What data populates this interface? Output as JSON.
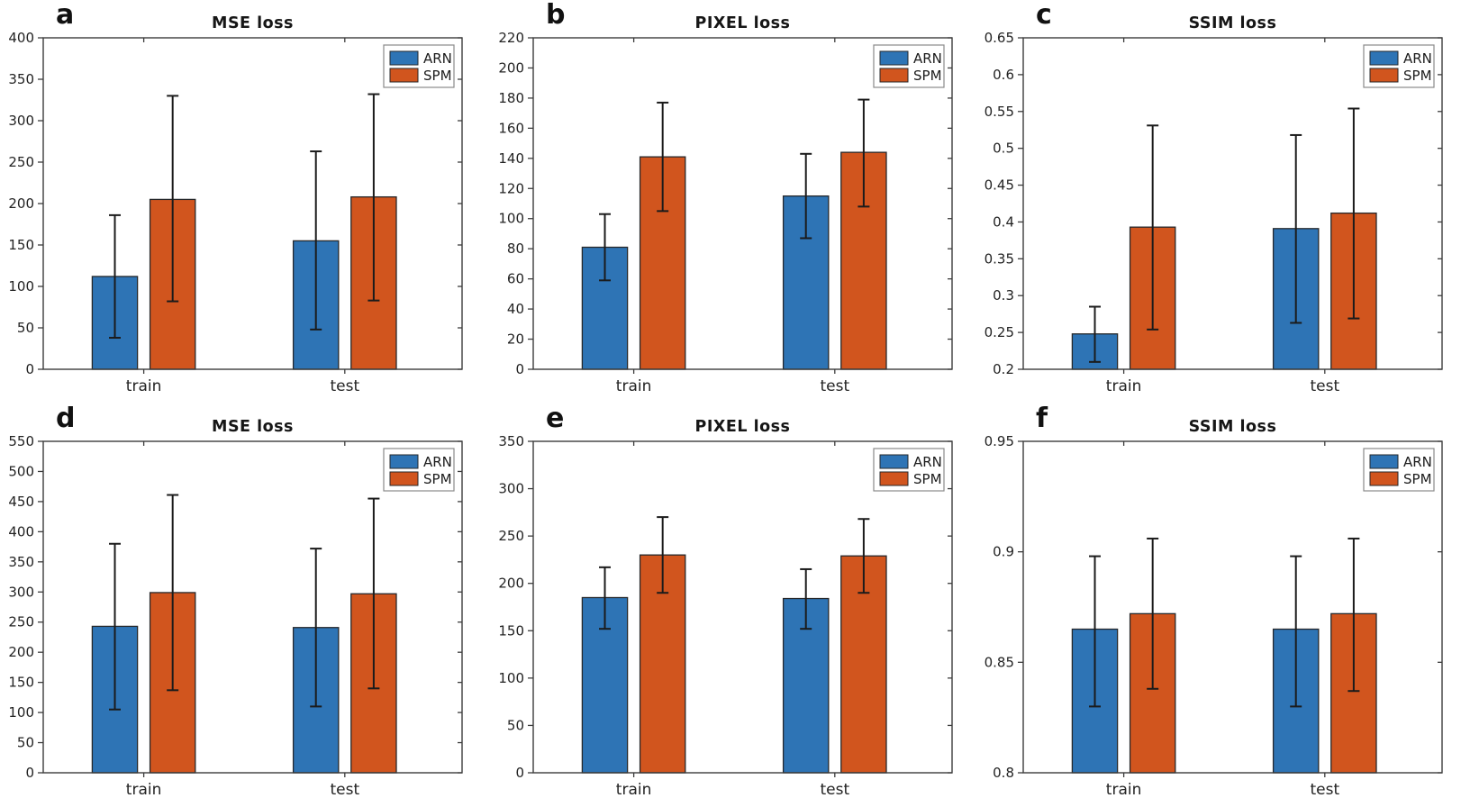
{
  "figure": {
    "background": "#ffffff",
    "series_colors": {
      "ARN": "#2E74B5",
      "SPM": "#D1551E"
    },
    "bar_edge_color": "#26282B",
    "errorbar_color": "#1B1B1B",
    "axis_color": "#3C3C3C",
    "legend_border_color": "#8A8A8A",
    "text_color": "#232323"
  },
  "chart_data": [
    {
      "panel": "a",
      "type": "bar",
      "title": "MSE loss",
      "categories": [
        "train",
        "test"
      ],
      "legend": [
        "ARN",
        "SPM"
      ],
      "legend_position": "top-right",
      "ylim": [
        0,
        400
      ],
      "ytick_step": 50,
      "grid": false,
      "series": [
        {
          "name": "ARN",
          "values": [
            112,
            155
          ],
          "err_low": [
            38,
            48
          ],
          "err_high": [
            186,
            263
          ]
        },
        {
          "name": "SPM",
          "values": [
            205,
            208
          ],
          "err_low": [
            82,
            83
          ],
          "err_high": [
            330,
            332
          ]
        }
      ]
    },
    {
      "panel": "b",
      "type": "bar",
      "title": "PIXEL loss",
      "categories": [
        "train",
        "test"
      ],
      "legend": [
        "ARN",
        "SPM"
      ],
      "legend_position": "top-right",
      "ylim": [
        0,
        220
      ],
      "ytick_step": 20,
      "grid": false,
      "series": [
        {
          "name": "ARN",
          "values": [
            81,
            115
          ],
          "err_low": [
            59,
            87
          ],
          "err_high": [
            103,
            143
          ]
        },
        {
          "name": "SPM",
          "values": [
            141,
            144
          ],
          "err_low": [
            105,
            108
          ],
          "err_high": [
            177,
            179
          ]
        }
      ]
    },
    {
      "panel": "c",
      "type": "bar",
      "title": "SSIM loss",
      "categories": [
        "train",
        "test"
      ],
      "legend": [
        "ARN",
        "SPM"
      ],
      "legend_position": "top-right",
      "ylim": [
        0.2,
        0.65
      ],
      "ytick_step": 0.05,
      "grid": false,
      "series": [
        {
          "name": "ARN",
          "values": [
            0.248,
            0.391
          ],
          "err_low": [
            0.21,
            0.263
          ],
          "err_high": [
            0.285,
            0.518
          ]
        },
        {
          "name": "SPM",
          "values": [
            0.393,
            0.412
          ],
          "err_low": [
            0.254,
            0.269
          ],
          "err_high": [
            0.531,
            0.554
          ]
        }
      ]
    },
    {
      "panel": "d",
      "type": "bar",
      "title": "MSE loss",
      "categories": [
        "train",
        "test"
      ],
      "legend": [
        "ARN",
        "SPM"
      ],
      "legend_position": "top-right",
      "ylim": [
        0,
        550
      ],
      "ytick_step": 50,
      "grid": false,
      "series": [
        {
          "name": "ARN",
          "values": [
            243,
            241
          ],
          "err_low": [
            105,
            110
          ],
          "err_high": [
            380,
            372
          ]
        },
        {
          "name": "SPM",
          "values": [
            299,
            297
          ],
          "err_low": [
            137,
            140
          ],
          "err_high": [
            461,
            455
          ]
        }
      ]
    },
    {
      "panel": "e",
      "type": "bar",
      "title": "PIXEL loss",
      "categories": [
        "train",
        "test"
      ],
      "legend": [
        "ARN",
        "SPM"
      ],
      "legend_position": "top-right",
      "ylim": [
        0,
        350
      ],
      "ytick_step": 50,
      "grid": false,
      "series": [
        {
          "name": "ARN",
          "values": [
            185,
            184
          ],
          "err_low": [
            152,
            152
          ],
          "err_high": [
            217,
            215
          ]
        },
        {
          "name": "SPM",
          "values": [
            230,
            229
          ],
          "err_low": [
            190,
            190
          ],
          "err_high": [
            270,
            268
          ]
        }
      ]
    },
    {
      "panel": "f",
      "type": "bar",
      "title": "SSIM loss",
      "categories": [
        "train",
        "test"
      ],
      "legend": [
        "ARN",
        "SPM"
      ],
      "legend_position": "top-right",
      "ylim": [
        0.8,
        0.95
      ],
      "ytick_step": 0.05,
      "grid": false,
      "series": [
        {
          "name": "ARN",
          "values": [
            0.865,
            0.865
          ],
          "err_low": [
            0.83,
            0.83
          ],
          "err_high": [
            0.898,
            0.898
          ]
        },
        {
          "name": "SPM",
          "values": [
            0.872,
            0.872
          ],
          "err_low": [
            0.838,
            0.837
          ],
          "err_high": [
            0.906,
            0.906
          ]
        }
      ]
    }
  ]
}
